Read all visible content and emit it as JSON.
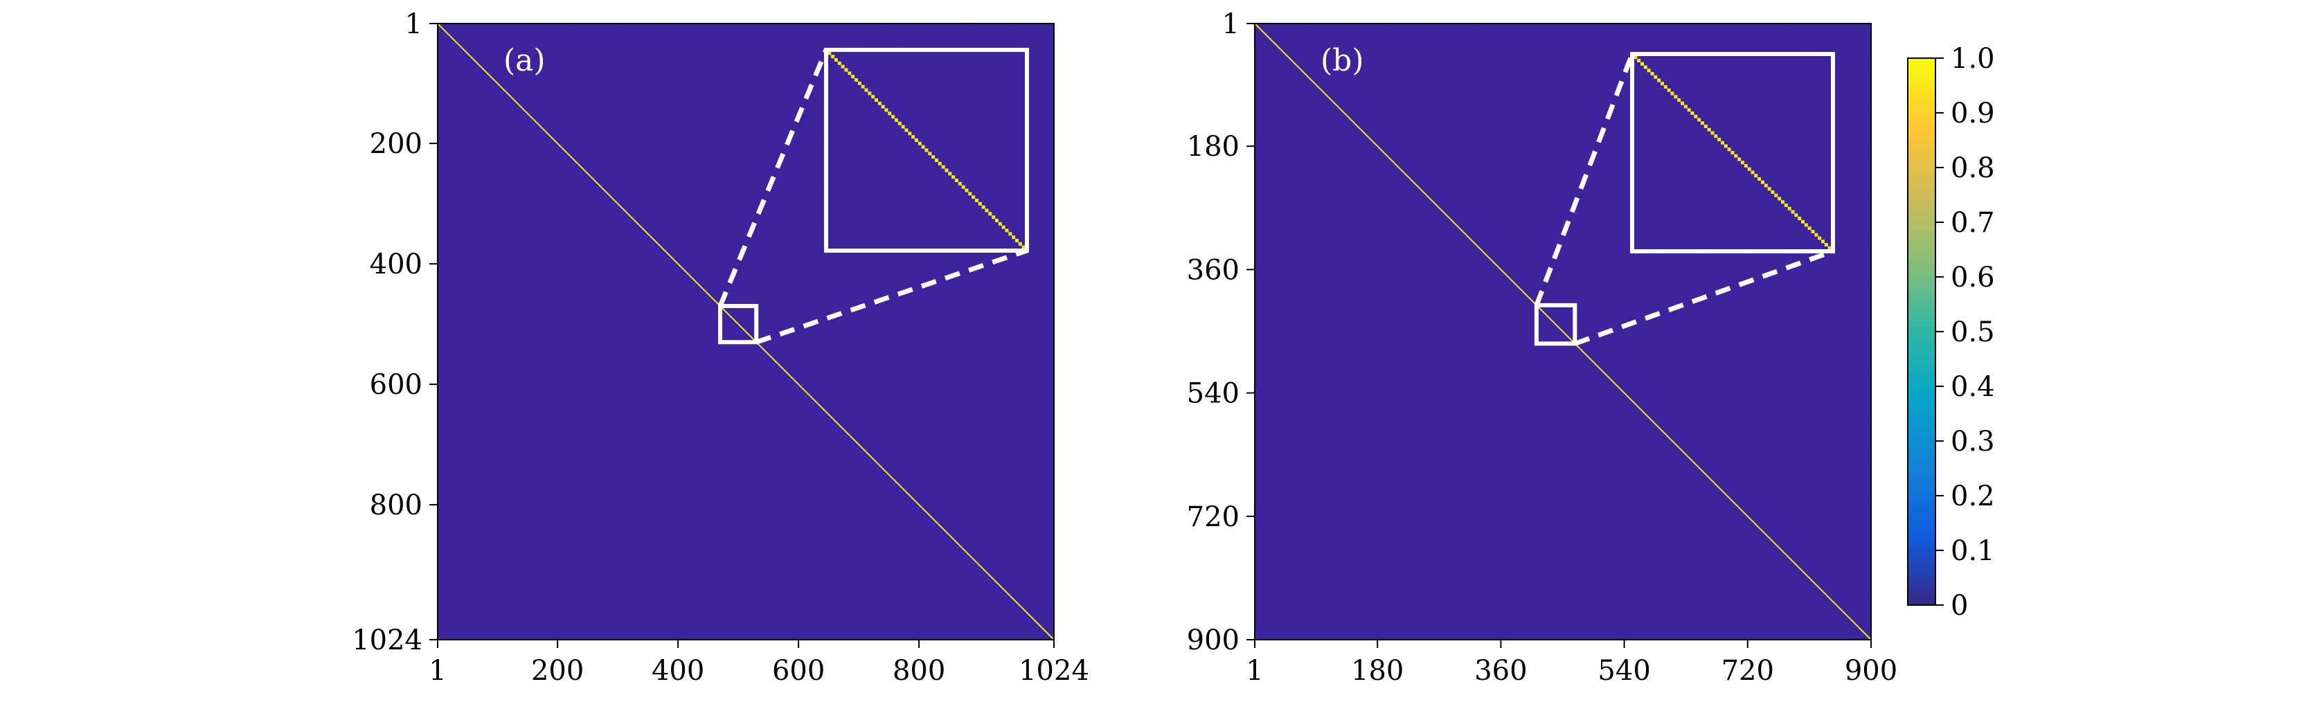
{
  "chart_data": [
    {
      "type": "heatmap",
      "panel_label": "(a)",
      "size": 1024,
      "x_ticks": [
        1,
        200,
        400,
        600,
        800,
        1024
      ],
      "y_ticks": [
        1,
        200,
        400,
        600,
        800,
        1024
      ],
      "background_value": 0.05,
      "diagonal_value": 1.0,
      "zoom_region": {
        "start": 470,
        "end": 530
      },
      "colors": {
        "background": "#3c249c",
        "diagonal": "#f5e61e"
      }
    },
    {
      "type": "heatmap",
      "panel_label": "(b)",
      "size": 900,
      "x_ticks": [
        1,
        180,
        360,
        540,
        720,
        900
      ],
      "y_ticks": [
        1,
        180,
        360,
        540,
        720,
        900
      ],
      "background_value": 0.05,
      "diagonal_value": 1.0,
      "zoom_region": {
        "start": 412,
        "end": 468
      },
      "colors": {
        "background": "#3c249c",
        "diagonal": "#f5e61e"
      }
    }
  ],
  "colorbar": {
    "min": 0,
    "max": 1.0,
    "ticks": [
      "0",
      "0.1",
      "0.2",
      "0.3",
      "0.4",
      "0.5",
      "0.6",
      "0.7",
      "0.8",
      "0.9",
      "1.0"
    ],
    "colormap": "parula",
    "stops": [
      "#352a87",
      "#0f5cdd",
      "#1481d6",
      "#06a4ca",
      "#2eb7a4",
      "#87bf77",
      "#d1bb59",
      "#fec832",
      "#f9fb0e"
    ]
  }
}
